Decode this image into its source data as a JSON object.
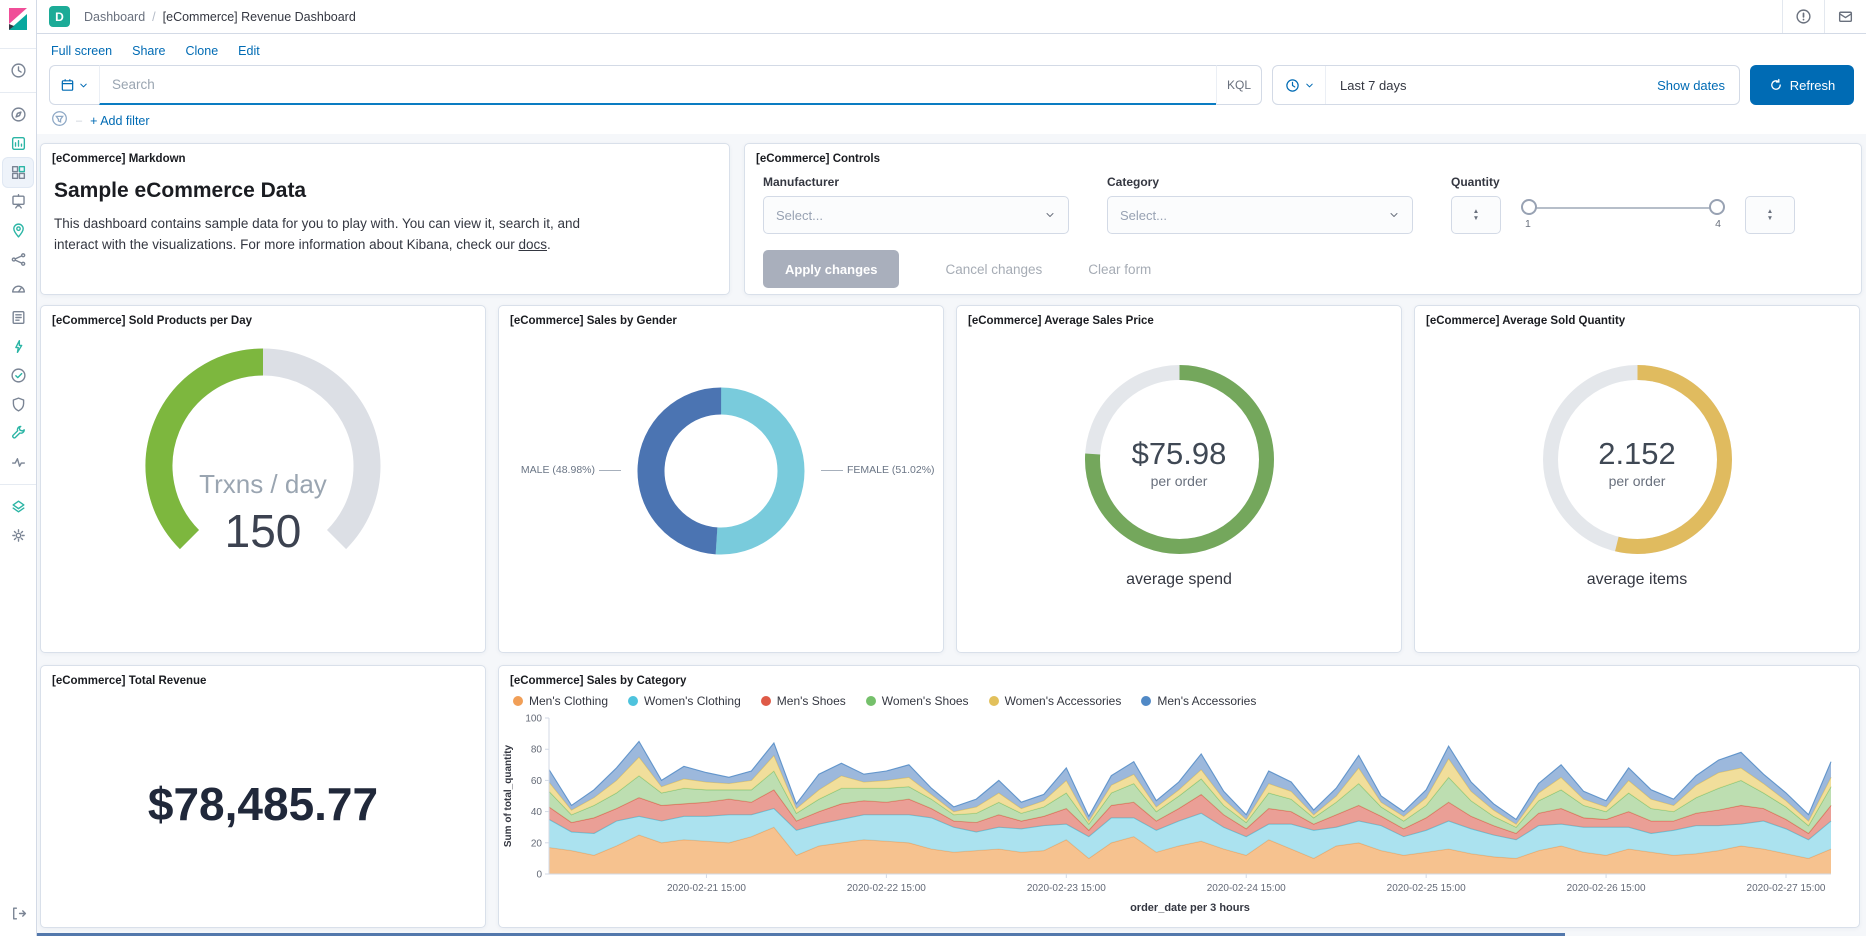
{
  "header": {
    "badge": "D",
    "breadcrumb_root": "Dashboard",
    "breadcrumb_sep": "/",
    "breadcrumb_current": "[eCommerce] Revenue Dashboard"
  },
  "toolbar": {
    "links": [
      "Full screen",
      "Share",
      "Clone",
      "Edit"
    ]
  },
  "search": {
    "placeholder": "Search",
    "kql_label": "KQL",
    "time_range": "Last 7 days",
    "show_dates_label": "Show dates",
    "refresh_label": "Refresh"
  },
  "filter_bar": {
    "dash": "–",
    "add_filter_label": "+ Add filter"
  },
  "panels": {
    "markdown": {
      "title": "[eCommerce] Markdown",
      "heading": "Sample eCommerce Data",
      "body_1": "This dashboard contains sample data for you to play with. You can view it, search it, and interact with the visualizations. For more information about Kibana, check our ",
      "link_label": "docs",
      "body_2": "."
    },
    "controls": {
      "title": "[eCommerce] Controls",
      "manufacturer_label": "Manufacturer",
      "category_label": "Category",
      "quantity_label": "Quantity",
      "manufacturer_placeholder": "Select...",
      "category_placeholder": "Select...",
      "slider_min": "1",
      "slider_max": "4",
      "apply_label": "Apply changes",
      "cancel_label": "Cancel changes",
      "clear_label": "Clear form"
    }
  },
  "chart_data": [
    {
      "id": "sold_products_per_day",
      "type": "gauge",
      "title": "[eCommerce] Sold Products per Day",
      "label": "Trxns / day",
      "display_value": "150",
      "value": 150,
      "min": 0,
      "max": 300,
      "percent": 50,
      "arc_degrees": 270,
      "color": "#7DB73E",
      "track_color": "#DCDFE5"
    },
    {
      "id": "sales_by_gender",
      "type": "pie",
      "title": "[eCommerce] Sales by Gender",
      "slices": [
        {
          "label": "MALE (48.98%)",
          "value": 48.98,
          "color": "#4B74B2"
        },
        {
          "label": "FEMALE (51.02%)",
          "value": 51.02,
          "color": "#79CBDC"
        }
      ]
    },
    {
      "id": "average_sales_price",
      "type": "goal",
      "title": "[eCommerce] Average Sales Price",
      "display_value": "$75.98",
      "sub_label": "per order",
      "caption": "average spend",
      "percent": 75.98,
      "color": "#74A75C",
      "track_color": "#E4E7EB"
    },
    {
      "id": "average_sold_quantity",
      "type": "goal",
      "title": "[eCommerce] Average Sold Quantity",
      "display_value": "2.152",
      "sub_label": "per order",
      "caption": "average items",
      "percent": 53.8,
      "color": "#E0BB5F",
      "track_color": "#E4E7EB"
    },
    {
      "id": "total_revenue",
      "type": "metric",
      "title": "[eCommerce] Total Revenue",
      "display_value": "$78,485.77"
    },
    {
      "id": "sales_by_category",
      "type": "area",
      "stacked": true,
      "title": "[eCommerce] Sales by Category",
      "xlabel": "order_date per 3 hours",
      "ylabel": "Sum of total_quantity",
      "ylim": [
        0,
        100
      ],
      "y_ticks": [
        0,
        20,
        40,
        60,
        80,
        100
      ],
      "grid": false,
      "legend_position": "top",
      "x_tick_indices": [
        7,
        15,
        23,
        31,
        39,
        47,
        55
      ],
      "x_tick_labels": [
        "2020-02-21 15:00",
        "2020-02-22 15:00",
        "2020-02-23 15:00",
        "2020-02-24 15:00",
        "2020-02-25 15:00",
        "2020-02-26 15:00",
        "2020-02-27 15:00"
      ],
      "series": [
        {
          "name": "Men's Clothing",
          "color": "#F19F57",
          "fill": "rgba(243,174,105,0.75)",
          "values": [
            17,
            15,
            12,
            18,
            25,
            20,
            22,
            21,
            20,
            24,
            30,
            12,
            18,
            20,
            22,
            21,
            20,
            16,
            14,
            15,
            16,
            14,
            15,
            22,
            10,
            20,
            24,
            14,
            18,
            21,
            16,
            12,
            22,
            16,
            10,
            18,
            20,
            15,
            12,
            14,
            16,
            13,
            11,
            10,
            15,
            18,
            14,
            12,
            16,
            14,
            12,
            13,
            15,
            18,
            16,
            13,
            10,
            16
          ]
        },
        {
          "name": "Women's Clothing",
          "color": "#4EC3DD",
          "fill": "rgba(150,219,235,0.8)",
          "values": [
            18,
            12,
            14,
            16,
            12,
            14,
            15,
            16,
            18,
            14,
            12,
            16,
            14,
            15,
            16,
            17,
            18,
            20,
            16,
            12,
            14,
            15,
            16,
            10,
            14,
            16,
            12,
            14,
            16,
            18,
            14,
            12,
            10,
            16,
            18,
            12,
            14,
            16,
            12,
            14,
            18,
            16,
            14,
            12,
            16,
            14,
            16,
            18,
            14,
            12,
            16,
            18,
            16,
            14,
            18,
            16,
            12,
            18
          ]
        },
        {
          "name": "Men's Shoes",
          "color": "#DF5A47",
          "fill": "rgba(226,122,110,0.72)",
          "values": [
            8,
            6,
            10,
            8,
            12,
            10,
            8,
            9,
            10,
            8,
            12,
            6,
            8,
            10,
            9,
            8,
            10,
            6,
            4,
            6,
            8,
            5,
            6,
            10,
            4,
            8,
            10,
            6,
            8,
            12,
            8,
            5,
            10,
            8,
            4,
            8,
            10,
            6,
            5,
            8,
            12,
            8,
            6,
            4,
            8,
            10,
            6,
            5,
            10,
            8,
            6,
            8,
            10,
            12,
            8,
            6,
            4,
            10
          ]
        },
        {
          "name": "Women's Shoes",
          "color": "#75C06B",
          "fill": "rgba(170,213,155,0.78)",
          "values": [
            10,
            5,
            8,
            10,
            14,
            8,
            10,
            8,
            6,
            8,
            12,
            5,
            8,
            10,
            8,
            9,
            8,
            6,
            4,
            6,
            8,
            5,
            6,
            10,
            4,
            8,
            12,
            6,
            8,
            10,
            6,
            4,
            10,
            8,
            4,
            8,
            14,
            6,
            5,
            8,
            16,
            10,
            6,
            4,
            8,
            12,
            8,
            5,
            12,
            8,
            6,
            10,
            14,
            16,
            10,
            8,
            5,
            12
          ]
        },
        {
          "name": "Women's Accessories",
          "color": "#E2C05B",
          "fill": "rgba(238,216,138,0.85)",
          "values": [
            6,
            3,
            5,
            8,
            12,
            4,
            6,
            5,
            4,
            6,
            10,
            3,
            6,
            8,
            4,
            5,
            6,
            3,
            2,
            4,
            6,
            3,
            4,
            8,
            2,
            5,
            6,
            3,
            4,
            6,
            4,
            2,
            6,
            5,
            2,
            4,
            10,
            3,
            3,
            5,
            12,
            6,
            4,
            2,
            5,
            8,
            4,
            3,
            8,
            6,
            4,
            8,
            10,
            8,
            6,
            4,
            3,
            6
          ]
        },
        {
          "name": "Men's Accessories",
          "color": "#5089C6",
          "fill": "rgba(139,172,214,0.85)",
          "values": [
            8,
            3,
            5,
            8,
            10,
            4,
            8,
            6,
            4,
            6,
            8,
            3,
            10,
            8,
            5,
            6,
            8,
            4,
            3,
            5,
            8,
            4,
            4,
            8,
            3,
            6,
            8,
            4,
            5,
            10,
            5,
            3,
            8,
            6,
            3,
            5,
            8,
            4,
            3,
            5,
            8,
            6,
            4,
            3,
            6,
            8,
            5,
            4,
            8,
            6,
            4,
            6,
            8,
            10,
            6,
            5,
            4,
            10
          ]
        }
      ]
    }
  ]
}
